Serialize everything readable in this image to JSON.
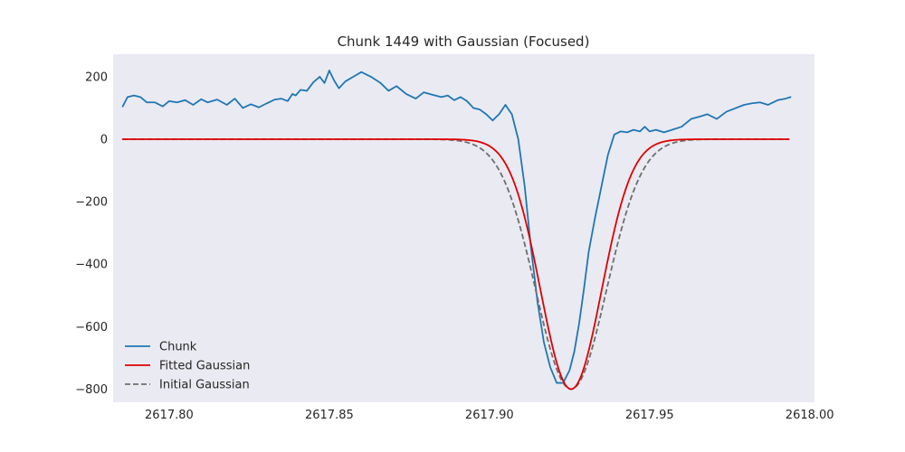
{
  "chart_data": {
    "type": "line",
    "title": "Chunk 1449 with Gaussian (Focused)",
    "xlabel": "",
    "ylabel": "",
    "xlim": [
      2617.7825,
      2618.0015
    ],
    "ylim": [
      -842,
      272
    ],
    "x_ticks": [
      2617.8,
      2617.85,
      2617.9,
      2617.95,
      2618.0
    ],
    "x_tick_labels": [
      "2617.80",
      "2617.85",
      "2617.90",
      "2617.95",
      "2618.00"
    ],
    "y_ticks": [
      200,
      0,
      -200,
      -400,
      -600,
      -800
    ],
    "y_tick_labels": [
      "200",
      "0",
      "−200",
      "−400",
      "−600",
      "−800"
    ],
    "grid": false,
    "legend_position": "lower-left",
    "background": "#eaeaf2",
    "series": [
      {
        "name": "Chunk",
        "color": "#1f77b4",
        "style": "solid",
        "x": [
          2617.7855,
          2617.787,
          2617.789,
          2617.791,
          2617.793,
          2617.7955,
          2617.798,
          2617.8,
          2617.8025,
          2617.805,
          2617.8075,
          2617.81,
          2617.812,
          2617.815,
          2617.818,
          2617.8205,
          2617.823,
          2617.8255,
          2617.828,
          2617.8305,
          2617.833,
          2617.835,
          2617.837,
          2617.8385,
          2617.8395,
          2617.841,
          2617.843,
          2617.845,
          2617.847,
          2617.8485,
          2617.85,
          2617.8515,
          2617.853,
          2617.855,
          2617.8575,
          2617.86,
          2617.863,
          2617.866,
          2617.8685,
          2617.871,
          2617.874,
          2617.877,
          2617.8795,
          2617.882,
          2617.885,
          2617.887,
          2617.889,
          2617.891,
          2617.893,
          2617.895,
          2617.897,
          2617.899,
          2617.901,
          2617.903,
          2617.905,
          2617.907,
          2617.909,
          2617.911,
          2617.913,
          2617.915,
          2617.917,
          2617.919,
          2617.921,
          2617.923,
          2617.925,
          2617.9265,
          2617.928,
          2617.9295,
          2617.931,
          2617.933,
          2617.935,
          2617.937,
          2617.939,
          2617.941,
          2617.943,
          2617.945,
          2617.947,
          2617.9485,
          2617.95,
          2617.952,
          2617.9545,
          2617.957,
          2617.96,
          2617.963,
          2617.9655,
          2617.968,
          2617.971,
          2617.974,
          2617.977,
          2617.9795,
          2617.982,
          2617.9845,
          2617.987,
          2617.99,
          2617.9925,
          2617.994
        ],
        "y": [
          105,
          135,
          140,
          135,
          118,
          118,
          105,
          122,
          118,
          125,
          110,
          128,
          118,
          127,
          110,
          130,
          100,
          112,
          102,
          115,
          127,
          130,
          122,
          145,
          140,
          158,
          155,
          182,
          200,
          180,
          220,
          188,
          163,
          185,
          200,
          215,
          200,
          180,
          155,
          170,
          145,
          130,
          150,
          143,
          135,
          140,
          125,
          135,
          122,
          100,
          95,
          80,
          60,
          80,
          110,
          80,
          0,
          -150,
          -350,
          -520,
          -650,
          -730,
          -780,
          -780,
          -740,
          -680,
          -590,
          -480,
          -360,
          -250,
          -150,
          -50,
          15,
          25,
          22,
          30,
          25,
          40,
          25,
          30,
          22,
          30,
          40,
          65,
          72,
          80,
          65,
          88,
          100,
          110,
          115,
          118,
          110,
          125,
          130,
          135
        ]
      },
      {
        "name": "Fitted Gaussian",
        "color": "#e00000",
        "style": "solid",
        "amplitude": -800,
        "center": 2617.9255,
        "sigma": 0.0095,
        "x_range": [
          2617.7855,
          2617.9935
        ]
      },
      {
        "name": "Initial Gaussian",
        "color": "#6e6e6e",
        "style": "dashed",
        "amplitude": -800,
        "center": 2617.9255,
        "sigma": 0.011,
        "x_range": [
          2617.7855,
          2617.9935
        ]
      }
    ]
  }
}
